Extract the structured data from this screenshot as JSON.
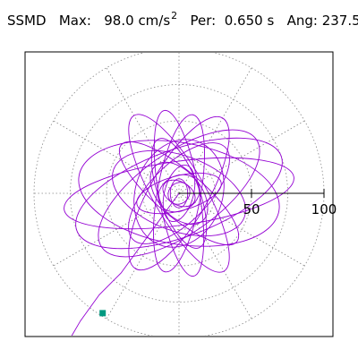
{
  "header": {
    "label": "SSMD",
    "max_label": "Max:",
    "max_value": "98.0",
    "max_unit": "cm/s",
    "max_unit_exp": "2",
    "per_label": "Per:",
    "per_value": "0.650 s",
    "ang_label": "Ang:",
    "ang_value": "237.5"
  },
  "colors": {
    "trace": "#9400D3",
    "marker": "#009980",
    "grid": "#888888",
    "axis": "#000000"
  },
  "chart_data": {
    "type": "polar-trajectory",
    "title": "",
    "rlim": [
      0,
      100
    ],
    "axis_angle_deg": 0,
    "axis_ticks": [
      50,
      100
    ],
    "axis_tick_labels": [
      "50",
      "100"
    ],
    "rings": [
      25,
      50,
      75,
      100
    ],
    "spoke_step_deg": 30,
    "grid": true,
    "peak": {
      "value": 98.0,
      "angle_deg": 237.5
    },
    "trace_ellipses": [
      {
        "a": 80,
        "b": 22,
        "rot": 8
      },
      {
        "a": 75,
        "b": 30,
        "rot": 20
      },
      {
        "a": 70,
        "b": 35,
        "rot": -10
      },
      {
        "a": 65,
        "b": 28,
        "rot": 35
      },
      {
        "a": 60,
        "b": 20,
        "rot": 60
      },
      {
        "a": 55,
        "b": 15,
        "rot": 80
      },
      {
        "a": 58,
        "b": 14,
        "rot": 100
      },
      {
        "a": 62,
        "b": 18,
        "rot": 120
      },
      {
        "a": 52,
        "b": 16,
        "rot": 140
      },
      {
        "a": 48,
        "b": 26,
        "rot": 160
      },
      {
        "a": 45,
        "b": 20,
        "rot": 45
      },
      {
        "a": 40,
        "b": 14,
        "rot": 110
      },
      {
        "a": 38,
        "b": 30,
        "rot": 70
      },
      {
        "a": 30,
        "b": 12,
        "rot": 15
      },
      {
        "a": 25,
        "b": 15,
        "rot": 130
      },
      {
        "a": 20,
        "b": 10,
        "rot": 75
      },
      {
        "a": 15,
        "b": 12,
        "rot": 30
      },
      {
        "a": 12,
        "b": 8,
        "rot": 150
      },
      {
        "a": 10,
        "b": 6,
        "rot": 90
      },
      {
        "a": 8,
        "b": 7,
        "rot": 45
      }
    ],
    "tail_points": [
      [
        -40,
        -55
      ],
      [
        -55,
        -70
      ],
      [
        -68,
        -88
      ],
      [
        -75,
        -100
      ],
      [
        -82,
        -105
      ]
    ]
  }
}
